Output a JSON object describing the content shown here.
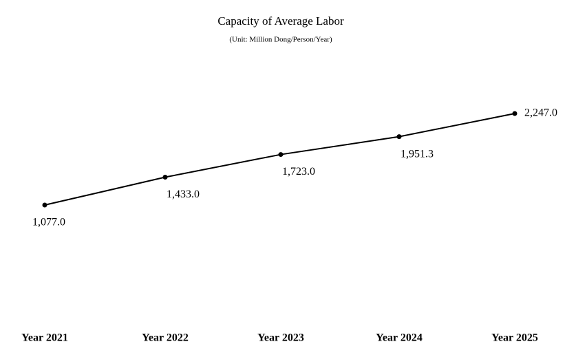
{
  "chart_data": {
    "type": "line",
    "title": "Capacity of Average Labor",
    "subtitle": "(Unit: Million Dong/Person/Year)",
    "categories": [
      "Year 2021",
      "Year 2022",
      "Year 2023",
      "Year 2024",
      "Year 2025"
    ],
    "series": [
      {
        "name": "Capacity of Average Labor",
        "color": "#000000",
        "values": [
          1077.0,
          1433.0,
          1723.0,
          1951.3,
          2247.0
        ],
        "value_labels": [
          "1,077.0",
          "1,433.0",
          "1,723.0",
          "1,951.3",
          "2,247.0"
        ]
      }
    ]
  }
}
